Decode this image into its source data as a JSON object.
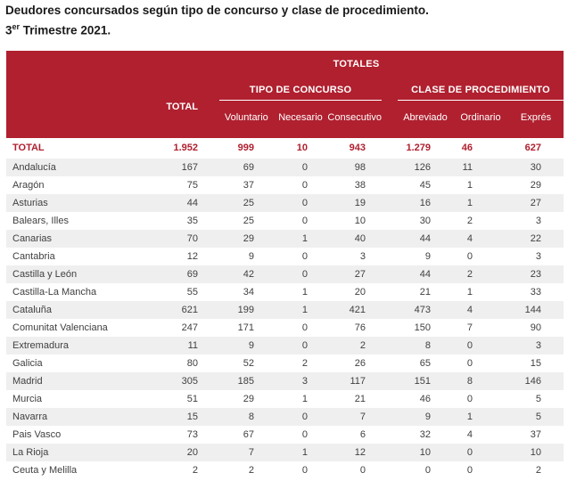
{
  "title": {
    "line1": "Deudores concursados según tipo de concurso y clase de procedimiento.",
    "quarter_number": "3",
    "quarter_sup": "er",
    "quarter_rest": " Trimestre 2021."
  },
  "header": {
    "totales": "TOTALES",
    "total_column": "TOTAL",
    "group_tipo": {
      "label": "TIPO DE CONCURSO",
      "columns": [
        "Voluntario",
        "Necesario",
        "Consecutivo"
      ]
    },
    "group_clase": {
      "label": "CLASE DE PROCEDIMIENTO",
      "columns": [
        "Abreviado",
        "Ordinario",
        "Exprés"
      ]
    }
  },
  "colors": {
    "header_bg": "#b0202f",
    "total_row_text": "#b0202f",
    "alt_row_bg": "#efefef",
    "body_text": "#404040",
    "title_text": "#1a1a1a"
  },
  "chart_data": {
    "type": "table",
    "title": "Deudores concursados según tipo de concurso y clase de procedimiento. 3er Trimestre 2021.",
    "column_groups": [
      {
        "label": "TOTALES",
        "span": "all"
      },
      {
        "label": "TIPO DE CONCURSO",
        "columns": [
          "Voluntario",
          "Necesario",
          "Consecutivo"
        ]
      },
      {
        "label": "CLASE DE PROCEDIMIENTO",
        "columns": [
          "Abreviado",
          "Ordinario",
          "Exprés"
        ]
      }
    ],
    "columns": [
      "TOTAL",
      "Voluntario",
      "Necesario",
      "Consecutivo",
      "Abreviado",
      "Ordinario",
      "Exprés"
    ],
    "total_row": {
      "label": "TOTAL",
      "values": [
        1952,
        999,
        10,
        943,
        1279,
        46,
        627
      ]
    },
    "rows": [
      {
        "label": "Andalucía",
        "values": [
          167,
          69,
          0,
          98,
          126,
          11,
          30
        ]
      },
      {
        "label": "Aragón",
        "values": [
          75,
          37,
          0,
          38,
          45,
          1,
          29
        ]
      },
      {
        "label": "Asturias",
        "values": [
          44,
          25,
          0,
          19,
          16,
          1,
          27
        ]
      },
      {
        "label": "Balears, Illes",
        "values": [
          35,
          25,
          0,
          10,
          30,
          2,
          3
        ]
      },
      {
        "label": "Canarias",
        "values": [
          70,
          29,
          1,
          40,
          44,
          4,
          22
        ]
      },
      {
        "label": "Cantabria",
        "values": [
          12,
          9,
          0,
          3,
          9,
          0,
          3
        ]
      },
      {
        "label": "Castilla y León",
        "values": [
          69,
          42,
          0,
          27,
          44,
          2,
          23
        ]
      },
      {
        "label": "Castilla-La Mancha",
        "values": [
          55,
          34,
          1,
          20,
          21,
          1,
          33
        ]
      },
      {
        "label": "Cataluña",
        "values": [
          621,
          199,
          1,
          421,
          473,
          4,
          144
        ]
      },
      {
        "label": "Comunitat Valenciana",
        "values": [
          247,
          171,
          0,
          76,
          150,
          7,
          90
        ]
      },
      {
        "label": "Extremadura",
        "values": [
          11,
          9,
          0,
          2,
          8,
          0,
          3
        ]
      },
      {
        "label": "Galicia",
        "values": [
          80,
          52,
          2,
          26,
          65,
          0,
          15
        ]
      },
      {
        "label": "Madrid",
        "values": [
          305,
          185,
          3,
          117,
          151,
          8,
          146
        ]
      },
      {
        "label": "Murcia",
        "values": [
          51,
          29,
          1,
          21,
          46,
          0,
          5
        ]
      },
      {
        "label": "Navarra",
        "values": [
          15,
          8,
          0,
          7,
          9,
          1,
          5
        ]
      },
      {
        "label": "Pais Vasco",
        "values": [
          73,
          67,
          0,
          6,
          32,
          4,
          37
        ]
      },
      {
        "label": "La Rioja",
        "values": [
          20,
          7,
          1,
          12,
          10,
          0,
          10
        ]
      },
      {
        "label": "Ceuta y Melilla",
        "values": [
          2,
          2,
          0,
          0,
          0,
          0,
          2
        ]
      }
    ]
  }
}
